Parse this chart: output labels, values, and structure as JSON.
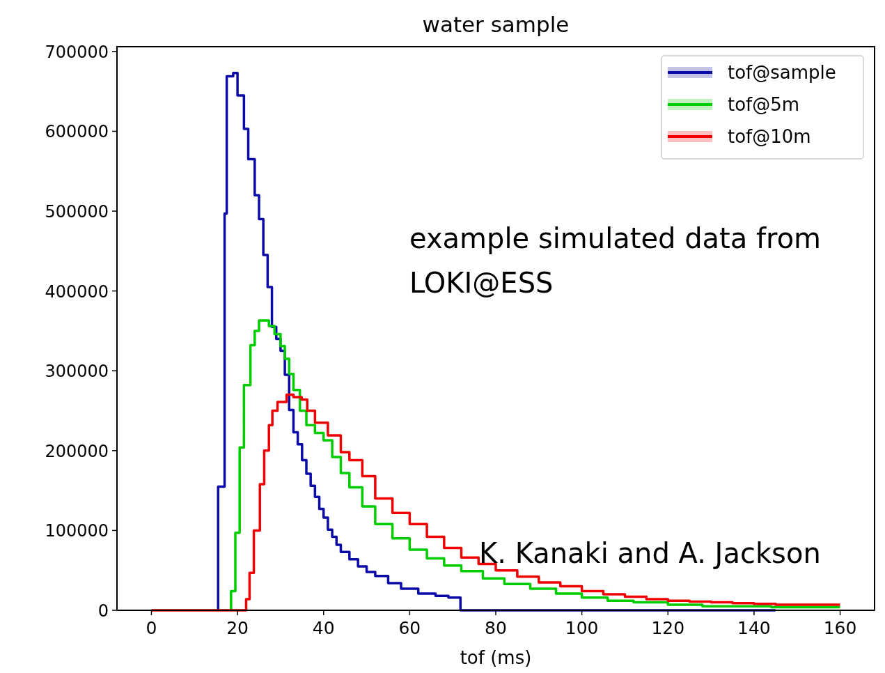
{
  "chart_data": {
    "type": "step",
    "title": "water sample",
    "xlabel": "tof (ms)",
    "xlim": [
      -8,
      168
    ],
    "ylim": [
      0,
      706000
    ],
    "xticks": [
      0,
      20,
      40,
      60,
      80,
      100,
      120,
      140,
      160
    ],
    "yticks": [
      0,
      100000,
      200000,
      300000,
      400000,
      500000,
      600000,
      700000
    ],
    "grid": false,
    "legend": "top right",
    "line_style": "solid",
    "marker": "none",
    "annotations": [
      "example simulated data from LOKI@ESS",
      "K. Kanaki and A. Jackson"
    ],
    "series": [
      {
        "name": "tof@sample",
        "color": "#0a0aa8",
        "x": [
          15.4,
          15.5,
          17,
          17.5,
          19,
          20,
          21.5,
          22.5,
          24,
          25,
          26,
          27,
          28,
          29,
          30,
          31,
          32,
          33,
          34,
          35,
          36,
          37,
          38,
          39,
          40,
          41,
          42,
          43,
          44,
          46,
          48,
          50,
          52,
          55,
          58,
          62,
          66,
          69,
          71.8,
          145
        ],
        "values": [
          0,
          155000,
          497000,
          669000,
          673000,
          645000,
          603000,
          565000,
          520000,
          490000,
          445000,
          405000,
          355000,
          340000,
          325000,
          295000,
          251000,
          223000,
          208000,
          188000,
          171000,
          156000,
          142000,
          127000,
          116000,
          101000,
          92000,
          82000,
          73000,
          64000,
          55000,
          48000,
          43000,
          34000,
          27000,
          21000,
          18000,
          16000,
          0,
          0
        ]
      },
      {
        "name": "tof@5m",
        "color": "#00cc00",
        "x": [
          18.4,
          18.5,
          19.5,
          20.5,
          21.5,
          23,
          24,
          25,
          27.3,
          28.6,
          30,
          31,
          32,
          33,
          34.5,
          36,
          38,
          40,
          42,
          44,
          46,
          49,
          52,
          56,
          60,
          64,
          68,
          72,
          77,
          82,
          88,
          94,
          100,
          106,
          112,
          120,
          128,
          136,
          144,
          152,
          160
        ],
        "values": [
          0,
          24000,
          97000,
          204000,
          282000,
          332000,
          350000,
          363000,
          356000,
          346000,
          331000,
          315000,
          296000,
          276000,
          250000,
          232000,
          222000,
          213000,
          192000,
          172000,
          154000,
          130000,
          108000,
          90000,
          76000,
          65000,
          56000,
          49000,
          40000,
          33000,
          27000,
          21000,
          16000,
          12000,
          10000,
          7000,
          5000,
          5000,
          4000,
          4000,
          4000
        ]
      },
      {
        "name": "tof@10m",
        "color": "#ee0000",
        "x": [
          0,
          22,
          22.8,
          23.8,
          25.2,
          26.2,
          27.3,
          28.1,
          29.3,
          31.4,
          33,
          34.9,
          36.2,
          38,
          41,
          44,
          46,
          49,
          52,
          56,
          60,
          64,
          68,
          72,
          76,
          80,
          85,
          90,
          95,
          100,
          105,
          110,
          115,
          120,
          125,
          130,
          135,
          140,
          145,
          150,
          160
        ],
        "values": [
          0,
          14000,
          47000,
          100000,
          158000,
          200000,
          232000,
          250000,
          261000,
          270000,
          267000,
          264000,
          250000,
          235000,
          219000,
          198000,
          188000,
          168000,
          140000,
          122000,
          108000,
          92000,
          78000,
          66000,
          58000,
          50000,
          42000,
          35000,
          30000,
          24000,
          20000,
          17000,
          14000,
          12000,
          11000,
          10000,
          9000,
          8000,
          7000,
          7000,
          7000
        ]
      }
    ]
  }
}
